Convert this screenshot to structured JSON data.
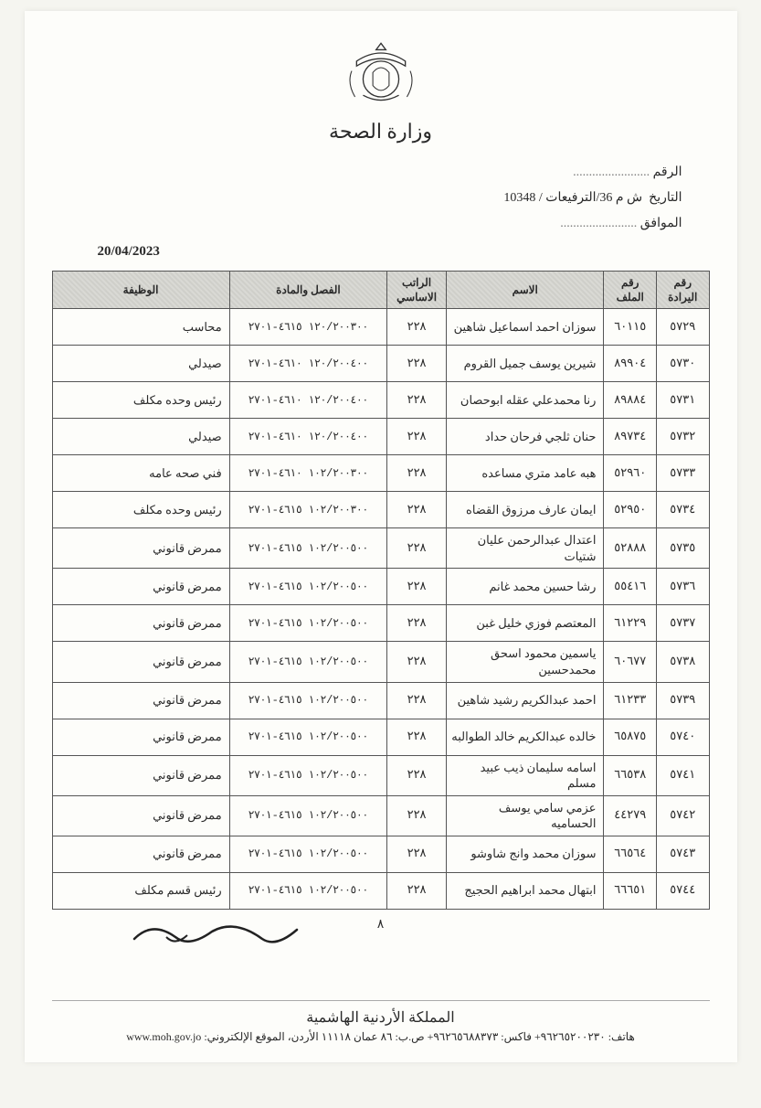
{
  "header": {
    "ministry_ar": "وزارة الصحة"
  },
  "meta": {
    "number_label": "الرقم",
    "date_label": "التاريخ",
    "date_value": "ش م 36/الترفيعات / 10348",
    "corresponds_label": "الموافق",
    "date_eur": "20/04/2023"
  },
  "table": {
    "columns": [
      "رقم اليرادة",
      "رقم الملف",
      "الاسم",
      "الراتب الاساسي",
      "الفصل والمادة",
      "الوظيفة"
    ],
    "widths_pct": [
      8,
      8,
      24,
      9,
      24,
      27
    ],
    "rows": [
      {
        "iradah": "٥٧٢٩",
        "file": "٦٠١١٥",
        "name": "سوزان احمد اسماعيل شاهين",
        "salary": "٢٢٨",
        "code": "١٢٠/٢٠٠٣٠٠ ٤٦١٥-٢٧٠١",
        "job": "محاسب"
      },
      {
        "iradah": "٥٧٣٠",
        "file": "٨٩٩٠٤",
        "name": "شيرين يوسف جميل القروم",
        "salary": "٢٢٨",
        "code": "١٢٠/٢٠٠٤٠٠ ٤٦١٠-٢٧٠١",
        "job": "صيدلي"
      },
      {
        "iradah": "٥٧٣١",
        "file": "٨٩٨٨٤",
        "name": "رنا محمدعلي عقله ابوحصان",
        "salary": "٢٢٨",
        "code": "١٢٠/٢٠٠٤٠٠ ٤٦١٠-٢٧٠١",
        "job": "رئيس وحده مكلف"
      },
      {
        "iradah": "٥٧٣٢",
        "file": "٨٩٧٣٤",
        "name": "حنان ثلجي فرحان حداد",
        "salary": "٢٢٨",
        "code": "١٢٠/٢٠٠٤٠٠ ٤٦١٠-٢٧٠١",
        "job": "صيدلي"
      },
      {
        "iradah": "٥٧٣٣",
        "file": "٥٢٩٦٠",
        "name": "هبه عامد متري مساعده",
        "salary": "٢٢٨",
        "code": "١٠٢/٢٠٠٣٠٠ ٤٦١٠-٢٧٠١",
        "job": "فني صحه عامه"
      },
      {
        "iradah": "٥٧٣٤",
        "file": "٥٢٩٥٠",
        "name": "ايمان عارف مرزوق القضاه",
        "salary": "٢٢٨",
        "code": "١٠٢/٢٠٠٣٠٠ ٤٦١٥-٢٧٠١",
        "job": "رئيس وحده مكلف"
      },
      {
        "iradah": "٥٧٣٥",
        "file": "٥٢٨٨٨",
        "name": "اعتدال عبدالرحمن عليان شتيات",
        "salary": "٢٢٨",
        "code": "١٠٢/٢٠٠٥٠٠ ٤٦١٥-٢٧٠١",
        "job": "ممرض قانوني"
      },
      {
        "iradah": "٥٧٣٦",
        "file": "٥٥٤١٦",
        "name": "رشا حسين محمد غانم",
        "salary": "٢٢٨",
        "code": "١٠٢/٢٠٠٥٠٠ ٤٦١٥-٢٧٠١",
        "job": "ممرض قانوني"
      },
      {
        "iradah": "٥٧٣٧",
        "file": "٦١٢٢٩",
        "name": "المعتصم فوزي خليل غبن",
        "salary": "٢٢٨",
        "code": "١٠٢/٢٠٠٥٠٠ ٤٦١٥-٢٧٠١",
        "job": "ممرض قانوني"
      },
      {
        "iradah": "٥٧٣٨",
        "file": "٦٠٦٧٧",
        "name": "ياسمين محمود اسحق محمدحسين",
        "salary": "٢٢٨",
        "code": "١٠٢/٢٠٠٥٠٠ ٤٦١٥-٢٧٠١",
        "job": "ممرض قانوني"
      },
      {
        "iradah": "٥٧٣٩",
        "file": "٦١٢٣٣",
        "name": "احمد عبدالكريم رشيد شاهين",
        "salary": "٢٢٨",
        "code": "١٠٢/٢٠٠٥٠٠ ٤٦١٥-٢٧٠١",
        "job": "ممرض قانوني"
      },
      {
        "iradah": "٥٧٤٠",
        "file": "٦٥٨٧٥",
        "name": "خالده عبدالكريم خالد الطوالبه",
        "salary": "٢٢٨",
        "code": "١٠٢/٢٠٠٥٠٠ ٤٦١٥-٢٧٠١",
        "job": "ممرض قانوني"
      },
      {
        "iradah": "٥٧٤١",
        "file": "٦٦٥٣٨",
        "name": "اسامه سليمان ذيب عبيد مسلم",
        "salary": "٢٢٨",
        "code": "١٠٢/٢٠٠٥٠٠ ٤٦١٥-٢٧٠١",
        "job": "ممرض قانوني"
      },
      {
        "iradah": "٥٧٤٢",
        "file": "٤٤٢٧٩",
        "name": "عزمي سامي يوسف الحساميه",
        "salary": "٢٢٨",
        "code": "١٠٢/٢٠٠٥٠٠ ٤٦١٥-٢٧٠١",
        "job": "ممرض قانوني"
      },
      {
        "iradah": "٥٧٤٣",
        "file": "٦٦٥٦٤",
        "name": "سوزان محمد وانج شاوشو",
        "salary": "٢٢٨",
        "code": "١٠٢/٢٠٠٥٠٠ ٤٦١٥-٢٧٠١",
        "job": "ممرض قانوني"
      },
      {
        "iradah": "٥٧٤٤",
        "file": "٦٦٦٥١",
        "name": "ابتهال محمد ابراهيم الحجيج",
        "salary": "٢٢٨",
        "code": "١٠٢/٢٠٠٥٠٠ ٤٦١٥-٢٧٠١",
        "job": "رئيس قسم مكلف"
      }
    ]
  },
  "page_number": "٨",
  "footer": {
    "kingdom": "المملكة الأردنية الهاشمية",
    "contact": "هاتف: ٩٦٢٦٥٢٠٠٢٣٠+ فاكس: ٩٦٢٦٥٦٨٨٣٧٣+ ص.ب: ٨٦ عمان ١١١١٨ الأردن، الموقع الإلكتروني: www.moh.gov.jo"
  }
}
